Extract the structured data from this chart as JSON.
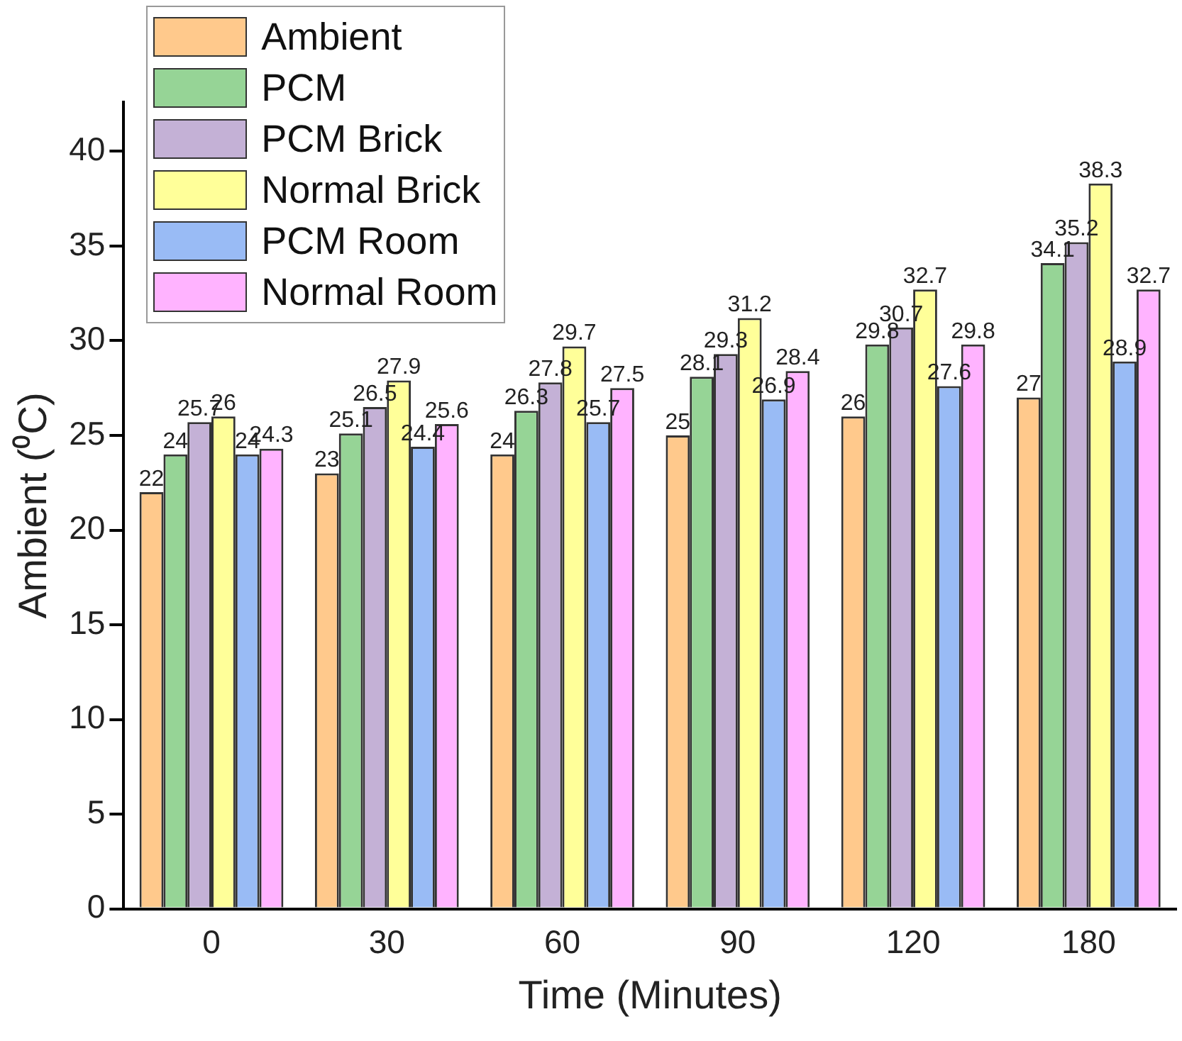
{
  "chart_data": {
    "type": "bar",
    "xlabel": "Time (Minutes)",
    "ylabel": "Ambient (⁰C)",
    "categories": [
      "0",
      "30",
      "60",
      "90",
      "120",
      "180"
    ],
    "series": [
      {
        "name": "Ambient",
        "color": "#ffc98c",
        "values": [
          22,
          23,
          24,
          25,
          26,
          27
        ]
      },
      {
        "name": "PCM",
        "color": "#96d496",
        "values": [
          24,
          25.1,
          26.3,
          28.1,
          29.8,
          34.1
        ]
      },
      {
        "name": "PCM Brick",
        "color": "#c4b1d6",
        "values": [
          25.7,
          26.5,
          27.8,
          29.3,
          30.7,
          35.2
        ]
      },
      {
        "name": "Normal Brick",
        "color": "#ffff99",
        "values": [
          26,
          27.9,
          29.7,
          31.2,
          32.7,
          38.3
        ]
      },
      {
        "name": "PCM Room",
        "color": "#99bbf5",
        "values": [
          24,
          24.4,
          25.7,
          26.9,
          27.6,
          28.9
        ]
      },
      {
        "name": "Normal Room",
        "color": "#ffb3ff",
        "values": [
          24.3,
          25.6,
          27.5,
          28.4,
          29.8,
          32.7
        ]
      }
    ],
    "ylim": [
      0,
      42.6
    ],
    "yticks": [
      0,
      5,
      10,
      15,
      20,
      25,
      30,
      35,
      40
    ],
    "grid": false,
    "legend": "top left",
    "data_labels": true
  }
}
